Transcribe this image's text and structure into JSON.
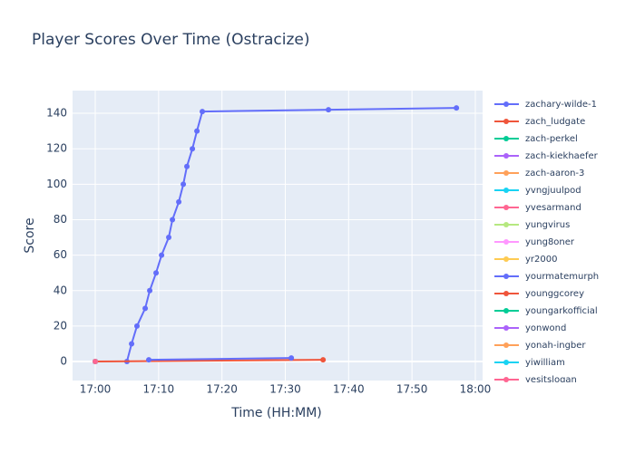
{
  "chart_data": {
    "type": "line",
    "title": "Player Scores Over Time (Ostracize)",
    "x_label": "Time (HH:MM)",
    "y_label": "Score",
    "xlim": [
      "16:56:25",
      "18:01:09"
    ],
    "xticks": [
      "17:00",
      "17:10",
      "17:20",
      "17:30",
      "17:40",
      "17:50",
      "18:00"
    ],
    "ylim": [
      -10.7,
      152.8
    ],
    "yticks": [
      0,
      20,
      40,
      60,
      80,
      100,
      120,
      140
    ],
    "grid": true,
    "legend": "right",
    "series": [
      {
        "name": "zachary-wilde-1",
        "color": "#636efa",
        "x": [
          "17:05:00",
          "17:05:44",
          "17:06:35",
          "17:07:53",
          "17:08:36",
          "17:09:36",
          "17:10:28",
          "17:11:36",
          "17:12:11",
          "17:13:11",
          "17:13:54",
          "17:14:28",
          "17:15:20",
          "17:16:03",
          "17:16:54",
          "17:36:49",
          "17:57:01"
        ],
        "values": [
          0,
          10,
          20,
          30,
          40,
          50,
          60,
          70,
          80,
          90,
          100,
          110,
          120,
          130,
          141,
          142,
          143
        ]
      },
      {
        "name": "zach_ludgate",
        "color": "#EF553B",
        "x": [
          "17:00:00",
          "17:35:58"
        ],
        "values": [
          0,
          1
        ]
      },
      {
        "name": "zach-perkel",
        "color": "#00cc96",
        "x": [
          "17:00:00"
        ],
        "values": [
          0
        ]
      },
      {
        "name": "zach-kiekhaefer",
        "color": "#ab63fa",
        "x": [
          "17:00:00"
        ],
        "values": [
          0
        ]
      },
      {
        "name": "zach-aaron-3",
        "color": "#FFA15A",
        "x": [
          "17:00:00"
        ],
        "values": [
          0
        ]
      },
      {
        "name": "yvngjuulpod",
        "color": "#19d3f3",
        "x": [
          "17:00:00"
        ],
        "values": [
          0
        ]
      },
      {
        "name": "yvesarmand",
        "color": "#FF6692",
        "x": [
          "17:00:00"
        ],
        "values": [
          0
        ]
      },
      {
        "name": "yungvirus",
        "color": "#B6E880",
        "x": [
          "17:00:00"
        ],
        "values": [
          0
        ]
      },
      {
        "name": "yung8oner",
        "color": "#FF97FF",
        "x": [
          "17:00:00"
        ],
        "values": [
          0
        ]
      },
      {
        "name": "yr2000",
        "color": "#FECB52",
        "x": [
          "17:00:00"
        ],
        "values": [
          0
        ]
      },
      {
        "name": "yourmatemurph",
        "color": "#636efa",
        "x": [
          "17:08:27",
          "17:30:57"
        ],
        "values": [
          1,
          2
        ]
      },
      {
        "name": "younggcorey",
        "color": "#EF553B",
        "x": [
          "17:00:00"
        ],
        "values": [
          0
        ]
      },
      {
        "name": "youngarkofficial",
        "color": "#00cc96",
        "x": [
          "17:00:00"
        ],
        "values": [
          0
        ]
      },
      {
        "name": "yonwond",
        "color": "#ab63fa",
        "x": [
          "17:00:00"
        ],
        "values": [
          0
        ]
      },
      {
        "name": "yonah-ingber",
        "color": "#FFA15A",
        "x": [
          "17:00:00"
        ],
        "values": [
          0
        ]
      },
      {
        "name": "yiwilliam",
        "color": "#19d3f3",
        "x": [
          "17:00:00"
        ],
        "values": [
          0
        ]
      },
      {
        "name": "yesitslogan",
        "color": "#FF6692",
        "x": [
          "17:00:00"
        ],
        "values": [
          0
        ]
      }
    ]
  }
}
